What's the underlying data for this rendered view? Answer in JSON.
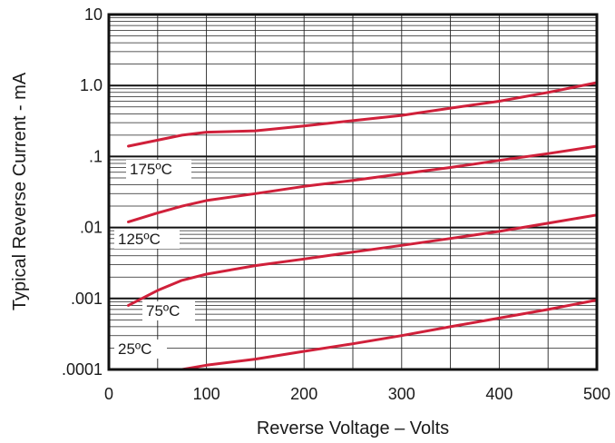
{
  "chart_data": {
    "type": "line",
    "title": "",
    "xlabel": "Reverse Voltage – Volts",
    "ylabel": "Typical Reverse Current - mA",
    "xlim": [
      0,
      500
    ],
    "ylim": [
      0.0001,
      10
    ],
    "yscale": "log",
    "grid": true,
    "x_ticks": [
      0,
      100,
      200,
      300,
      400,
      500
    ],
    "x_tick_labels": [
      "0",
      "100",
      "200",
      "300",
      "400",
      "500"
    ],
    "y_ticks": [
      0.0001,
      0.001,
      0.01,
      0.1,
      1,
      10
    ],
    "y_tick_labels": [
      ".0001",
      ".001",
      ".01",
      ".1",
      "1.0",
      "10"
    ],
    "line_color": "#d0203a",
    "series": [
      {
        "name": "175ºC",
        "x": [
          20,
          50,
          75,
          100,
          150,
          200,
          250,
          300,
          350,
          400,
          450,
          500
        ],
        "y": [
          0.14,
          0.17,
          0.2,
          0.22,
          0.23,
          0.27,
          0.32,
          0.38,
          0.48,
          0.6,
          0.8,
          1.1
        ]
      },
      {
        "name": "125ºC",
        "x": [
          20,
          50,
          75,
          100,
          150,
          200,
          250,
          300,
          350,
          400,
          450,
          500
        ],
        "y": [
          0.012,
          0.016,
          0.02,
          0.024,
          0.03,
          0.038,
          0.046,
          0.057,
          0.07,
          0.088,
          0.11,
          0.14
        ]
      },
      {
        "name": "75ºC",
        "x": [
          20,
          50,
          75,
          100,
          150,
          200,
          250,
          300,
          350,
          400,
          450,
          500
        ],
        "y": [
          0.0008,
          0.0013,
          0.0018,
          0.0022,
          0.0029,
          0.0036,
          0.0045,
          0.0056,
          0.007,
          0.0088,
          0.0115,
          0.015
        ]
      },
      {
        "name": "25ºC",
        "x": [
          75,
          100,
          150,
          200,
          250,
          300,
          350,
          400,
          450,
          500
        ],
        "y": [
          0.0001,
          0.000115,
          0.00014,
          0.00018,
          0.00023,
          0.0003,
          0.0004,
          0.00053,
          0.0007,
          0.00095
        ]
      }
    ]
  }
}
